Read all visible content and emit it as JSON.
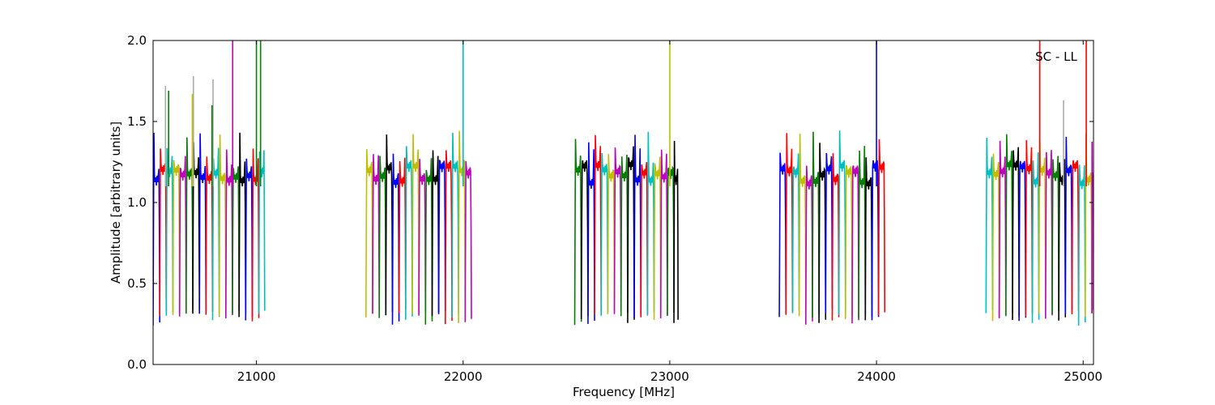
{
  "chart_data": {
    "type": "line",
    "title": "",
    "annotation": "SC - LL",
    "xlabel": "Frequency [MHz]",
    "ylabel": "Amplitude [arbitrary units]",
    "xlim": [
      20500,
      25050
    ],
    "ylim": [
      0.0,
      2.0
    ],
    "x_ticks": [
      21000,
      22000,
      23000,
      24000,
      25000
    ],
    "x_tick_labels": [
      "21000",
      "22000",
      "23000",
      "24000",
      "25000"
    ],
    "y_ticks": [
      0.0,
      0.5,
      1.0,
      1.5,
      2.0
    ],
    "y_tick_labels": [
      "0.0",
      "0.5",
      "1.0",
      "1.5",
      "2.0"
    ],
    "grid": false,
    "legend": "none",
    "bands": [
      {
        "start": 20500,
        "end": 21040
      },
      {
        "start": 21530,
        "end": 22040
      },
      {
        "start": 22540,
        "end": 23040
      },
      {
        "start": 23530,
        "end": 24040
      },
      {
        "start": 24530,
        "end": 25050
      }
    ],
    "channel_width_mhz": 32,
    "series_colors": [
      "#0000ff",
      "#ff0000",
      "#00bfbf",
      "#bfbf00",
      "#bf00bf",
      "#007f00",
      "#000000"
    ],
    "spikes": [
      {
        "x": 20560,
        "y": 1.72,
        "color": "#aaaaaa"
      },
      {
        "x": 20695,
        "y": 1.78,
        "color": "#aaaaaa"
      },
      {
        "x": 20690,
        "y": 1.67,
        "color": "#bfbf00"
      },
      {
        "x": 20575,
        "y": 1.69,
        "color": "#007f00"
      },
      {
        "x": 20790,
        "y": 1.76,
        "color": "#aaaaaa"
      },
      {
        "x": 20785,
        "y": 1.6,
        "color": "#007f00"
      },
      {
        "x": 20885,
        "y": 2.0,
        "color": "#bf00bf"
      },
      {
        "x": 21000,
        "y": 2.0,
        "color": "#007f00"
      },
      {
        "x": 21020,
        "y": 2.0,
        "color": "#007f00"
      },
      {
        "x": 22000,
        "y": 2.0,
        "color": "#00bfbf"
      },
      {
        "x": 23000,
        "y": 2.0,
        "color": "#bfbf00"
      },
      {
        "x": 24000,
        "y": 2.0,
        "color": "#0000ff"
      },
      {
        "x": 24790,
        "y": 2.0,
        "color": "#ff0000"
      },
      {
        "x": 24905,
        "y": 1.63,
        "color": "#aaaaaa"
      },
      {
        "x": 25015,
        "y": 2.0,
        "color": "#ff0000"
      }
    ]
  }
}
